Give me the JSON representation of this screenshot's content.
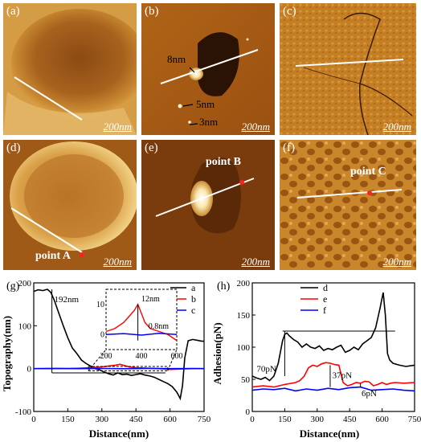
{
  "panels": {
    "a": {
      "label": "(a)",
      "scale": "200nm"
    },
    "b": {
      "label": "(b)",
      "scale": "200nm",
      "ann_8nm": "8nm",
      "ann_5nm": "5nm",
      "ann_3nm": "3nm"
    },
    "c": {
      "label": "(c)",
      "scale": "200nm"
    },
    "d": {
      "label": "(d)",
      "scale": "200nm",
      "point": "point A"
    },
    "e": {
      "label": "(e)",
      "scale": "200nm",
      "point": "point B"
    },
    "f": {
      "label": "(f)",
      "scale": "200nm",
      "point": "point C"
    }
  },
  "colors": {
    "a_line": "#000000",
    "b_line": "#ff0000",
    "c_line": "#0000ff",
    "point": "#ff2020",
    "afm_dark": "#3a1a00",
    "afm_light": "#f7d27a"
  },
  "chart_data": [
    {
      "type": "line",
      "panel_label": "(g)",
      "xlabel": "Distance(nm)",
      "ylabel": "Topography(nm)",
      "xlim": [
        0,
        750
      ],
      "ylim": [
        -100,
        200
      ],
      "xticks": [
        "0",
        "150",
        "300",
        "450",
        "600",
        "750"
      ],
      "yticks": [
        "-100",
        "0",
        "100",
        "200"
      ],
      "legend": [
        "a",
        "b",
        "c"
      ],
      "annotations": {
        "main": "192nm",
        "inset_red": "12nm",
        "inset_blue": "0.8nm"
      },
      "inset": {
        "xlim": [
          200,
          600
        ],
        "ylim": [
          -5,
          15
        ],
        "xticks": [
          "200",
          "400",
          "600"
        ],
        "yticks": [
          "0",
          "10"
        ]
      },
      "series": [
        {
          "name": "a",
          "x": [
            0,
            20,
            40,
            60,
            75,
            90,
            110,
            130,
            150,
            170,
            190,
            210,
            230,
            250,
            270,
            290,
            310,
            330,
            350,
            370,
            390,
            410,
            430,
            450,
            470,
            490,
            510,
            530,
            550,
            570,
            590,
            610,
            630,
            645,
            655,
            665,
            680,
            700,
            720,
            740,
            750
          ],
          "y": [
            180,
            184,
            182,
            185,
            178,
            160,
            130,
            100,
            72,
            48,
            35,
            20,
            12,
            6,
            0,
            -3,
            -8,
            -12,
            -15,
            -10,
            -14,
            -13,
            -16,
            -14,
            -12,
            -15,
            -17,
            -20,
            -25,
            -30,
            -35,
            -42,
            -55,
            -70,
            -40,
            25,
            65,
            68,
            66,
            64,
            64
          ]
        },
        {
          "name": "b",
          "x": [
            0,
            50,
            100,
            150,
            200,
            250,
            300,
            330,
            360,
            380,
            400,
            420,
            450,
            500,
            550,
            600,
            650,
            700,
            750
          ],
          "y": [
            0,
            0,
            0,
            0,
            1,
            2,
            4,
            6,
            8,
            10,
            7,
            4,
            2,
            1,
            0,
            -2,
            -1,
            0,
            0
          ]
        },
        {
          "name": "c",
          "x": [
            0,
            100,
            200,
            300,
            400,
            500,
            600,
            700,
            750
          ],
          "y": [
            0,
            0.5,
            0,
            0.3,
            -0.2,
            0.4,
            0,
            0.2,
            0
          ]
        }
      ]
    },
    {
      "type": "line",
      "panel_label": "(h)",
      "xlabel": "Distance(nm)",
      "ylabel": "Adhesion(pN)",
      "xlim": [
        0,
        750
      ],
      "ylim": [
        0,
        200
      ],
      "xticks": [
        "0",
        "150",
        "300",
        "450",
        "600",
        "750"
      ],
      "yticks": [
        "0",
        "50",
        "100",
        "150",
        "200"
      ],
      "legend": [
        "d",
        "e",
        "f"
      ],
      "annotations": {
        "d": "70pN",
        "e": "37pN",
        "f": "6pN"
      },
      "series": [
        {
          "name": "d",
          "x": [
            0,
            20,
            40,
            60,
            80,
            100,
            120,
            140,
            150,
            160,
            170,
            190,
            210,
            230,
            250,
            270,
            290,
            310,
            330,
            350,
            370,
            390,
            410,
            430,
            450,
            470,
            490,
            510,
            530,
            550,
            570,
            590,
            605,
            615,
            625,
            635,
            650,
            680,
            710,
            750
          ],
          "y": [
            55,
            52,
            50,
            53,
            48,
            55,
            75,
            110,
            120,
            122,
            118,
            112,
            108,
            100,
            105,
            100,
            98,
            102,
            95,
            98,
            96,
            100,
            103,
            92,
            95,
            100,
            96,
            105,
            110,
            115,
            130,
            160,
            185,
            150,
            90,
            80,
            75,
            72,
            70,
            72
          ]
        },
        {
          "name": "e",
          "x": [
            0,
            50,
            100,
            150,
            200,
            220,
            240,
            260,
            280,
            300,
            320,
            340,
            360,
            380,
            400,
            420,
            440,
            460,
            480,
            500,
            520,
            540,
            560,
            580,
            600,
            620,
            640,
            660,
            700,
            750
          ],
          "y": [
            38,
            40,
            38,
            42,
            45,
            48,
            55,
            68,
            72,
            70,
            74,
            76,
            75,
            73,
            72,
            45,
            40,
            42,
            45,
            44,
            47,
            46,
            40,
            42,
            45,
            42,
            44,
            45,
            44,
            45
          ]
        },
        {
          "name": "f",
          "x": [
            0,
            50,
            100,
            150,
            200,
            250,
            300,
            350,
            400,
            450,
            500,
            550,
            600,
            650,
            700,
            750
          ],
          "y": [
            33,
            35,
            34,
            36,
            32,
            35,
            33,
            36,
            34,
            37,
            38,
            33,
            34,
            35,
            33,
            32
          ]
        }
      ]
    }
  ]
}
